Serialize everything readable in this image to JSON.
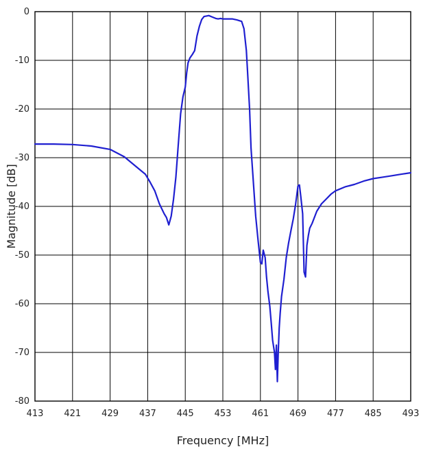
{
  "chart_data": {
    "type": "line",
    "title": "",
    "xlabel": "Frequency [MHz]",
    "ylabel": "Magnitude [dB]",
    "xlim": [
      413,
      493
    ],
    "ylim": [
      -80,
      0
    ],
    "xticks": [
      413,
      421,
      429,
      437,
      445,
      453,
      461,
      469,
      477,
      485,
      493
    ],
    "yticks": [
      0,
      -10,
      -20,
      -30,
      -40,
      -50,
      -60,
      -70,
      -80
    ],
    "grid": true,
    "legend": "none",
    "series": [
      {
        "color": "#1f1fd0",
        "x": [
          413,
          417,
          421,
          425,
          429,
          432,
          435,
          436.5,
          437.5,
          438.5,
          439.5,
          440.5,
          441,
          441.5,
          442,
          442.5,
          443,
          443.5,
          444,
          444.5,
          445,
          445.3,
          445.6,
          446,
          446.5,
          447,
          447.5,
          448,
          448.5,
          449,
          449.5,
          450,
          450.5,
          451,
          451.5,
          452,
          452.5,
          453,
          454,
          455,
          456,
          457,
          457.5,
          458,
          458.3,
          458.7,
          459,
          459.5,
          460,
          460.5,
          461,
          461.3,
          461.6,
          462,
          462.3,
          462.6,
          463,
          463.3,
          463.6,
          464,
          464.2,
          464.4,
          464.6,
          464.8,
          465,
          465.2,
          465.5,
          466,
          466.5,
          467,
          467.5,
          468,
          468.5,
          469,
          469.3,
          469.6,
          470,
          470.3,
          470.6,
          470.9,
          471.2,
          471.5,
          472,
          473,
          474,
          475,
          476,
          477,
          479,
          481,
          483,
          485,
          487,
          489,
          491,
          493
        ],
        "y": [
          -27.2,
          -27.2,
          -27.3,
          -27.6,
          -28.3,
          -29.8,
          -32.2,
          -33.4,
          -35.0,
          -36.8,
          -39.5,
          -41.5,
          -42.3,
          -43.8,
          -42.0,
          -38.5,
          -34.0,
          -27.5,
          -21.0,
          -17.5,
          -15.5,
          -12.5,
          -10.5,
          -9.5,
          -8.8,
          -8.0,
          -5.0,
          -3.0,
          -1.6,
          -1.0,
          -0.9,
          -0.8,
          -1.0,
          -1.2,
          -1.4,
          -1.5,
          -1.4,
          -1.5,
          -1.5,
          -1.5,
          -1.7,
          -2.0,
          -3.5,
          -8.0,
          -13.0,
          -20.0,
          -28.0,
          -35.0,
          -42.0,
          -47.0,
          -51.5,
          -51.8,
          -49.0,
          -50.5,
          -54.5,
          -57.5,
          -60.5,
          -64.0,
          -67.5,
          -70.0,
          -73.5,
          -68.5,
          -76.0,
          -70.0,
          -65.0,
          -62.0,
          -58.5,
          -55.0,
          -50.5,
          -47.5,
          -45.0,
          -42.5,
          -39.5,
          -35.8,
          -35.6,
          -38.0,
          -41.5,
          -53.5,
          -54.5,
          -48.0,
          -46.0,
          -44.5,
          -43.5,
          -41.0,
          -39.5,
          -38.5,
          -37.5,
          -36.8,
          -36.0,
          -35.5,
          -34.8,
          -34.3,
          -34.0,
          -33.7,
          -33.4,
          -33.1
        ]
      }
    ]
  }
}
